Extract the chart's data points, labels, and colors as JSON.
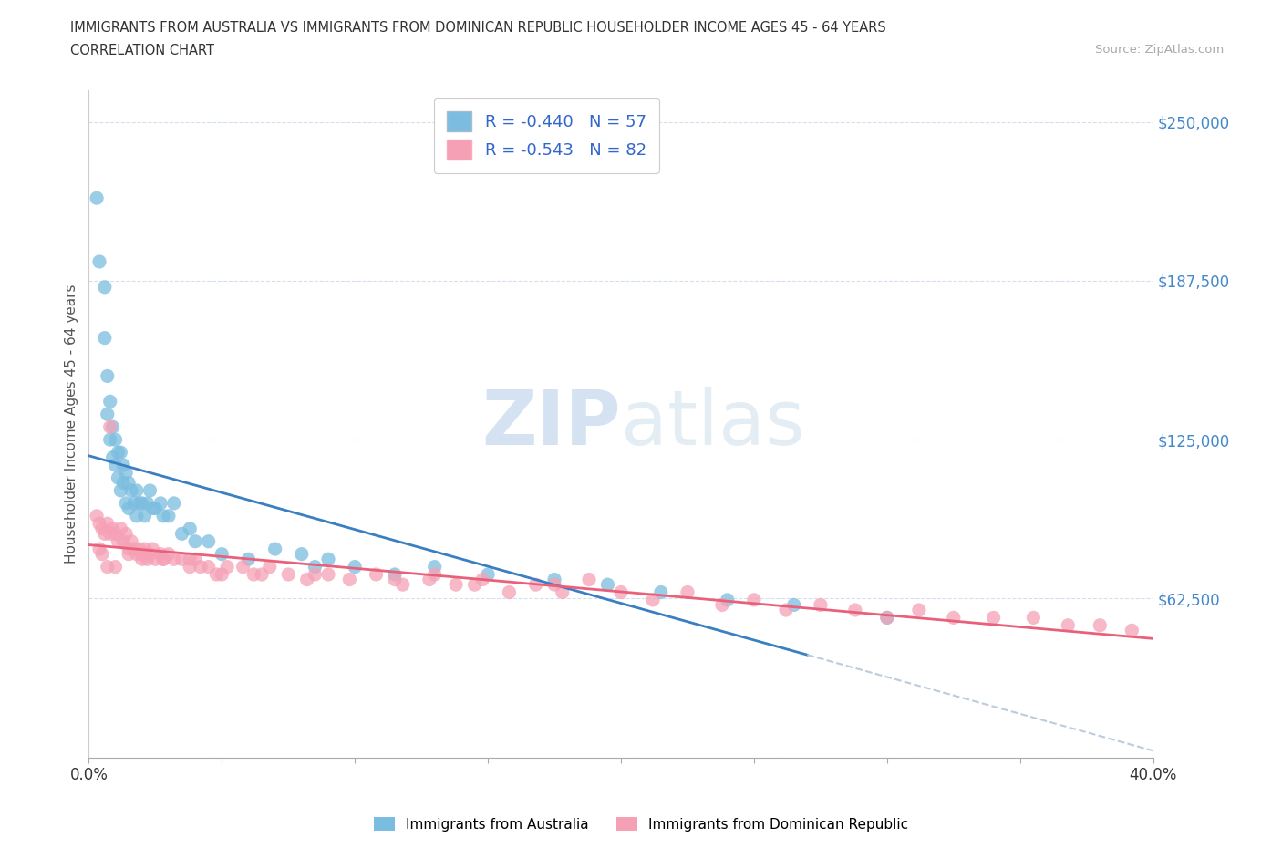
{
  "title_line1": "IMMIGRANTS FROM AUSTRALIA VS IMMIGRANTS FROM DOMINICAN REPUBLIC HOUSEHOLDER INCOME AGES 45 - 64 YEARS",
  "title_line2": "CORRELATION CHART",
  "source_text": "Source: ZipAtlas.com",
  "ylabel": "Householder Income Ages 45 - 64 years",
  "xlim": [
    0.0,
    0.4
  ],
  "ylim": [
    0,
    262500
  ],
  "yticks": [
    0,
    62500,
    125000,
    187500,
    250000
  ],
  "ytick_labels": [
    "",
    "$62,500",
    "$125,000",
    "$187,500",
    "$250,000"
  ],
  "xticks": [
    0.0,
    0.05,
    0.1,
    0.15,
    0.2,
    0.25,
    0.3,
    0.35,
    0.4
  ],
  "australia_R": -0.44,
  "australia_N": 57,
  "dr_R": -0.543,
  "dr_N": 82,
  "australia_color": "#7bbde0",
  "dr_color": "#f5a0b5",
  "australia_trend_color": "#3a7fc1",
  "dr_trend_color": "#e8607a",
  "legend_text_color": "#3a7fc1",
  "watermark_color": "#d0dff0",
  "australia_points_x": [
    0.003,
    0.004,
    0.006,
    0.006,
    0.007,
    0.007,
    0.008,
    0.008,
    0.009,
    0.009,
    0.01,
    0.01,
    0.011,
    0.011,
    0.012,
    0.012,
    0.013,
    0.013,
    0.014,
    0.014,
    0.015,
    0.015,
    0.016,
    0.017,
    0.018,
    0.018,
    0.019,
    0.02,
    0.021,
    0.022,
    0.023,
    0.024,
    0.025,
    0.027,
    0.028,
    0.03,
    0.032,
    0.035,
    0.038,
    0.04,
    0.045,
    0.05,
    0.06,
    0.07,
    0.08,
    0.085,
    0.09,
    0.1,
    0.115,
    0.13,
    0.15,
    0.175,
    0.195,
    0.215,
    0.24,
    0.265,
    0.3
  ],
  "australia_points_y": [
    220000,
    195000,
    185000,
    165000,
    150000,
    135000,
    140000,
    125000,
    130000,
    118000,
    125000,
    115000,
    120000,
    110000,
    120000,
    105000,
    115000,
    108000,
    112000,
    100000,
    108000,
    98000,
    105000,
    100000,
    105000,
    95000,
    100000,
    100000,
    95000,
    100000,
    105000,
    98000,
    98000,
    100000,
    95000,
    95000,
    100000,
    88000,
    90000,
    85000,
    85000,
    80000,
    78000,
    82000,
    80000,
    75000,
    78000,
    75000,
    72000,
    75000,
    72000,
    70000,
    68000,
    65000,
    62000,
    60000,
    55000
  ],
  "dr_points_x": [
    0.003,
    0.004,
    0.005,
    0.006,
    0.007,
    0.008,
    0.009,
    0.01,
    0.011,
    0.012,
    0.013,
    0.014,
    0.015,
    0.016,
    0.017,
    0.018,
    0.019,
    0.02,
    0.021,
    0.022,
    0.023,
    0.024,
    0.025,
    0.027,
    0.028,
    0.03,
    0.032,
    0.035,
    0.038,
    0.04,
    0.042,
    0.045,
    0.048,
    0.052,
    0.058,
    0.062,
    0.068,
    0.075,
    0.082,
    0.09,
    0.098,
    0.108,
    0.118,
    0.128,
    0.138,
    0.148,
    0.158,
    0.168,
    0.178,
    0.188,
    0.2,
    0.212,
    0.225,
    0.238,
    0.25,
    0.262,
    0.275,
    0.288,
    0.3,
    0.312,
    0.325,
    0.34,
    0.355,
    0.368,
    0.38,
    0.392,
    0.175,
    0.145,
    0.115,
    0.085,
    0.065,
    0.05,
    0.038,
    0.028,
    0.02,
    0.015,
    0.01,
    0.007,
    0.005,
    0.004,
    0.008,
    0.13
  ],
  "dr_points_y": [
    95000,
    92000,
    90000,
    88000,
    92000,
    88000,
    90000,
    88000,
    85000,
    90000,
    85000,
    88000,
    82000,
    85000,
    82000,
    80000,
    82000,
    80000,
    82000,
    78000,
    80000,
    82000,
    78000,
    80000,
    78000,
    80000,
    78000,
    78000,
    75000,
    78000,
    75000,
    75000,
    72000,
    75000,
    75000,
    72000,
    75000,
    72000,
    70000,
    72000,
    70000,
    72000,
    68000,
    70000,
    68000,
    70000,
    65000,
    68000,
    65000,
    70000,
    65000,
    62000,
    65000,
    60000,
    62000,
    58000,
    60000,
    58000,
    55000,
    58000,
    55000,
    55000,
    55000,
    52000,
    52000,
    50000,
    68000,
    68000,
    70000,
    72000,
    72000,
    72000,
    78000,
    78000,
    78000,
    80000,
    75000,
    75000,
    80000,
    82000,
    130000,
    72000
  ]
}
